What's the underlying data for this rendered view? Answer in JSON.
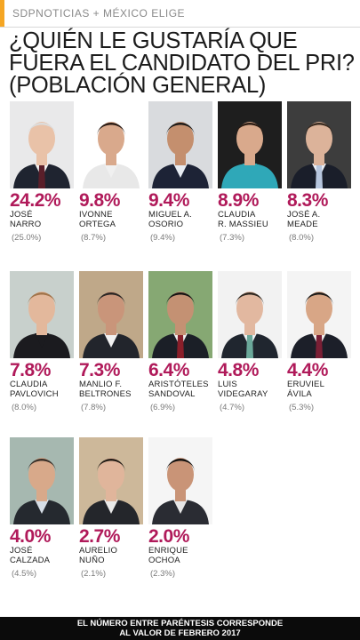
{
  "header": {
    "brand": "SDPNOTICIAS + MÉXICO ELIGE"
  },
  "chart_data": {
    "type": "bar",
    "title": "¿QUIÉN LE GUSTARÍA QUE FUERA EL CANDIDATO DEL PRI? (POBLACIÓN GENERAL)",
    "categories": [
      "JOSÉ\nNARRO",
      "IVONNE\nORTEGA",
      "MIGUEL A.\nOSORIO",
      "CLAUDIA\nR. MASSIEU",
      "JOSÉ A.\nMEADE",
      "CLAUDIA\nPAVLOVICH",
      "MANLIO F.\nBELTRONES",
      "ARISTÓTELES\nSANDOVAL",
      "LUIS\nVIDEGARAY",
      "ERUVIEL\nÁVILA",
      "JOSÉ\nCALZADA",
      "AURELIO\nNUÑO",
      "ENRIQUE\nOCHOA"
    ],
    "series": [
      {
        "values": [
          24.2,
          9.8,
          9.4,
          8.9,
          8.3,
          7.8,
          7.3,
          6.4,
          4.8,
          4.4,
          4.0,
          2.7,
          2.0
        ],
        "labels": [
          "24.2%",
          "9.8%",
          "9.4%",
          "8.9%",
          "8.3%",
          "7.8%",
          "7.3%",
          "6.4%",
          "4.8%",
          "4.4%",
          "4.0%",
          "2.7%",
          "2.0%"
        ]
      },
      {
        "values": [
          25.0,
          8.7,
          9.4,
          7.3,
          8.0,
          8.0,
          7.8,
          6.9,
          4.7,
          5.3,
          4.5,
          2.1,
          2.3
        ],
        "labels": [
          "(25.0%)",
          "(8.7%)",
          "(9.4%)",
          "(7.3%)",
          "(8.0%)",
          "(8.0%)",
          "(7.8%)",
          "(6.9%)",
          "(4.7%)",
          "(5.3%)",
          "(4.5%)",
          "(2.1%)",
          "(2.3%)"
        ]
      }
    ]
  },
  "portraits": [
    {
      "bg": "#e9e9ea",
      "skin": "#e9c2a8",
      "hair": "#dcdcdc",
      "suit": "#1f2430",
      "shirt": "#f4f4f4",
      "tie": "#5a1f2a"
    },
    {
      "bg": "#ffffff",
      "skin": "#d9a98c",
      "hair": "#2a1b14",
      "suit": "#e8e8e8",
      "shirt": "#f0f0f0",
      "tie": ""
    },
    {
      "bg": "#d9dbde",
      "skin": "#c48f6e",
      "hair": "#1c1a18",
      "suit": "#1d2336",
      "shirt": "#e7ecf2",
      "tie": ""
    },
    {
      "bg": "#1e1e1e",
      "skin": "#d9a98c",
      "hair": "#2b1b12",
      "suit": "#2fa8b8",
      "shirt": "#2fa8b8",
      "tie": ""
    },
    {
      "bg": "#3d3d3d",
      "skin": "#dcb39a",
      "hair": "#3a2b20",
      "suit": "#1a1e2a",
      "shirt": "#e9eef6",
      "tie": "#b7c6de"
    },
    {
      "bg": "#c8d0cc",
      "skin": "#e3b89c",
      "hair": "#a0734a",
      "suit": "#1b1b1f",
      "shirt": "#1b1b1f",
      "tie": ""
    },
    {
      "bg": "#bfa889",
      "skin": "#c9957a",
      "hair": "#2a2624",
      "suit": "#22252c",
      "shirt": "#f2f2f2",
      "tie": ""
    },
    {
      "bg": "#86a873",
      "skin": "#c49173",
      "hair": "#151312",
      "suit": "#1b1f27",
      "shirt": "#f0f0f0",
      "tie": "#8a1f2a"
    },
    {
      "bg": "#f2f2f2",
      "skin": "#e2b8a0",
      "hair": "#2e2720",
      "suit": "#20262f",
      "shirt": "#eef2f5",
      "tie": "#6aa89a"
    },
    {
      "bg": "#f4f4f4",
      "skin": "#d8a686",
      "hair": "#1d1a18",
      "suit": "#1c1f29",
      "shirt": "#f0f0f0",
      "tie": "#7a1f35"
    },
    {
      "bg": "#a6b8b0",
      "skin": "#d8a98a",
      "hair": "#3a3029",
      "suit": "#25292f",
      "shirt": "#d6dde6",
      "tie": ""
    },
    {
      "bg": "#cdb89a",
      "skin": "#e0b59b",
      "hair": "#231c16",
      "suit": "#24262b",
      "shirt": "#eaeaea",
      "tie": ""
    },
    {
      "bg": "#f5f5f5",
      "skin": "#c99477",
      "hair": "#141210",
      "suit": "#2a2c33",
      "shirt": "#e6e6e6",
      "tie": ""
    }
  ],
  "footer": {
    "note": "EL NÚMERO ENTRE PARÉNTESIS CORRESPONDE\nAL VALOR DE FEBRERO 2017"
  }
}
